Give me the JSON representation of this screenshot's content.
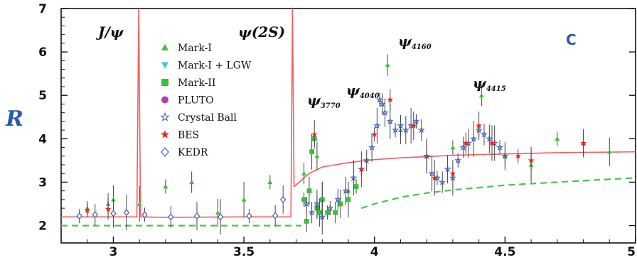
{
  "chart_data": {
    "type": "scatter",
    "panel_label": "C",
    "ylabel": "R",
    "xlim": [
      2.8,
      5.0
    ],
    "ylim": [
      1.6,
      7.0
    ],
    "x_ticks": [
      "3",
      "3.5",
      "4",
      "4.5",
      "5"
    ],
    "y_ticks": [
      "2",
      "3",
      "4",
      "5",
      "6",
      "7"
    ],
    "x_tick_values": [
      3,
      3.5,
      4,
      4.5,
      5
    ],
    "y_tick_values": [
      2,
      3,
      4,
      5,
      6,
      7
    ],
    "resonances": [
      {
        "label": "J/ψ",
        "x": 3.097
      },
      {
        "label": "ψ(2S)",
        "x": 3.686
      },
      {
        "label": "ψ",
        "sub": "3770",
        "x": 3.773
      },
      {
        "label": "ψ",
        "sub": "4040",
        "x": 4.039
      },
      {
        "label": "ψ",
        "sub": "4160",
        "x": 4.153
      },
      {
        "label": "ψ",
        "sub": "4415",
        "x": 4.421
      }
    ],
    "legend": [
      {
        "name": "Mark-I",
        "marker": "triangle-up",
        "color": "#3cbe3c"
      },
      {
        "name": "Mark-I + LGW",
        "marker": "triangle-down",
        "color": "#3cc8e6"
      },
      {
        "name": "Mark-II",
        "marker": "square",
        "color": "#3cbe3c"
      },
      {
        "name": "PLUTO",
        "marker": "circle",
        "color": "#b040b0"
      },
      {
        "name": "Crystal Ball",
        "marker": "star-open",
        "color": "#3a5eb8"
      },
      {
        "name": "BES",
        "marker": "star",
        "color": "#ee2222"
      },
      {
        "name": "KEDR",
        "marker": "diamond-open",
        "color": "#3a5eb8"
      }
    ],
    "curves": {
      "theory": {
        "color": "#f06060",
        "style": "solid",
        "x": [
          2.8,
          3.0,
          3.09,
          3.097,
          3.104,
          3.2,
          3.5,
          3.68,
          3.686,
          3.692,
          3.75,
          3.8,
          3.9,
          4.0,
          4.1,
          4.2,
          4.3,
          4.5,
          4.7,
          5.0
        ],
        "y": [
          2.2,
          2.2,
          2.2,
          7.0,
          2.2,
          2.19,
          2.2,
          2.2,
          7.0,
          2.9,
          3.2,
          3.35,
          3.45,
          3.52,
          3.56,
          3.59,
          3.62,
          3.65,
          3.68,
          3.7
        ]
      },
      "baseline": {
        "color": "#4cc04c",
        "style": "dashed",
        "x": [
          2.8,
          3.2,
          3.6,
          3.7,
          3.72
        ],
        "y": [
          2.0,
          2.0,
          2.0,
          2.0,
          2.0
        ]
      },
      "continuum": {
        "color": "#4cc04c",
        "style": "dashed",
        "x": [
          3.95,
          4.0,
          4.1,
          4.2,
          4.3,
          4.5,
          4.7,
          5.0
        ],
        "y": [
          2.4,
          2.5,
          2.65,
          2.75,
          2.82,
          2.93,
          3.0,
          3.1
        ]
      }
    },
    "series": [
      {
        "name": "Mark-I",
        "x": [
          2.9,
          2.98,
          3.0,
          3.1,
          3.2,
          3.3,
          3.4,
          3.5,
          3.6,
          3.73,
          3.78,
          3.8,
          3.9,
          4.05,
          4.1,
          4.2,
          4.3,
          4.41,
          4.5,
          4.6,
          4.7,
          4.8,
          4.9
        ],
        "y": [
          2.4,
          2.5,
          2.6,
          2.5,
          2.9,
          3.0,
          2.3,
          2.6,
          3.0,
          3.2,
          3.6,
          2.6,
          2.8,
          5.7,
          4.2,
          3.6,
          3.8,
          5.0,
          3.6,
          3.4,
          4.0,
          3.9,
          3.7
        ]
      },
      {
        "name": "Mark-II",
        "x": [
          3.73,
          3.74,
          3.75,
          3.76,
          3.77,
          3.78,
          3.79,
          3.8,
          3.82,
          3.85,
          3.87,
          3.9,
          3.93
        ],
        "y": [
          2.6,
          2.1,
          2.8,
          3.7,
          4.0,
          2.4,
          2.3,
          2.6,
          2.3,
          2.3,
          2.5,
          2.6,
          2.9
        ]
      },
      {
        "name": "Crystal Ball",
        "x": [
          3.74,
          3.76,
          3.78,
          3.8,
          3.83,
          3.86,
          3.89,
          3.92,
          3.95,
          3.97,
          3.99,
          4.01,
          4.02,
          4.03,
          4.04,
          4.06,
          4.08,
          4.1,
          4.12,
          4.14,
          4.16,
          4.18,
          4.2,
          4.22,
          4.24,
          4.26,
          4.28,
          4.3,
          4.32,
          4.34,
          4.36,
          4.38,
          4.4,
          4.42,
          4.44,
          4.46,
          4.48,
          4.5
        ],
        "y": [
          2.5,
          2.3,
          2.5,
          2.2,
          2.4,
          2.6,
          2.8,
          3.1,
          3.3,
          3.5,
          3.8,
          4.3,
          4.9,
          4.8,
          4.6,
          4.4,
          4.2,
          4.3,
          4.2,
          4.3,
          4.4,
          4.2,
          3.6,
          3.2,
          3.1,
          3.0,
          3.3,
          3.1,
          3.5,
          3.8,
          3.9,
          4.0,
          4.2,
          4.1,
          4.0,
          3.9,
          3.8,
          3.6
        ]
      },
      {
        "name": "BES",
        "x": [
          2.9,
          2.98,
          3.77,
          3.95,
          4.0,
          4.06,
          4.15,
          4.23,
          4.3,
          4.35,
          4.4,
          4.45,
          4.55,
          4.6,
          4.8
        ],
        "y": [
          2.35,
          2.38,
          4.1,
          3.3,
          4.1,
          4.9,
          4.3,
          3.1,
          3.2,
          3.9,
          4.3,
          3.9,
          3.6,
          3.5,
          3.9
        ]
      },
      {
        "name": "KEDR",
        "x": [
          2.87,
          2.93,
          3.0,
          3.05,
          3.12,
          3.22,
          3.32,
          3.41,
          3.52,
          3.62,
          3.65
        ],
        "y": [
          2.22,
          2.25,
          2.28,
          2.3,
          2.25,
          2.2,
          2.22,
          2.2,
          2.22,
          2.23,
          2.6
        ]
      }
    ]
  }
}
